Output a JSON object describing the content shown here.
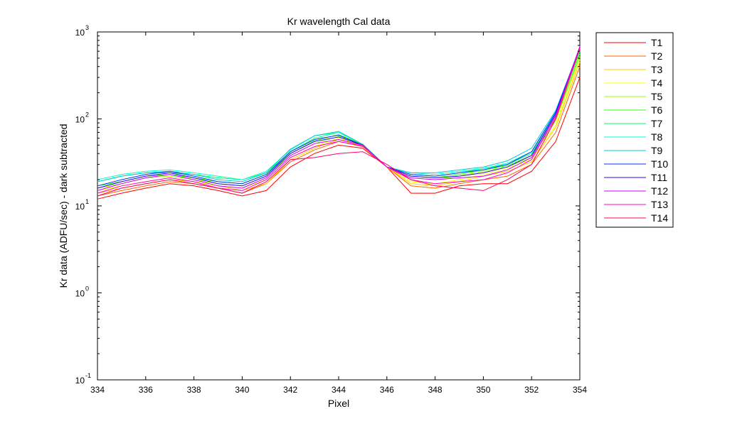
{
  "chart_data": {
    "type": "line",
    "title": "Kr wavelength Cal data",
    "xlabel": "Pixel",
    "ylabel": "Kr data (ADFU/sec) - dark subtracted",
    "xlim": [
      334,
      354
    ],
    "ylim": [
      0.1,
      1000
    ],
    "yscale": "log",
    "grid": false,
    "legend_position": "outside-top-right",
    "x_ticks": [
      "334",
      "336",
      "338",
      "340",
      "342",
      "344",
      "346",
      "348",
      "350",
      "352",
      "354"
    ],
    "y_ticks": [
      {
        "base": "10",
        "exp": "-1"
      },
      {
        "base": "10",
        "exp": "0"
      },
      {
        "base": "10",
        "exp": "1"
      },
      {
        "base": "10",
        "exp": "2"
      },
      {
        "base": "10",
        "exp": "3"
      }
    ],
    "x": [
      334,
      335,
      336,
      337,
      338,
      339,
      340,
      341,
      342,
      343,
      344,
      345,
      346,
      347,
      348,
      349,
      350,
      351,
      352,
      353,
      354
    ],
    "series": [
      {
        "name": "T1",
        "color": "#ff0000",
        "values": [
          12,
          14,
          16,
          18,
          17,
          15,
          13,
          15,
          28,
          40,
          50,
          46,
          28,
          14,
          14,
          17,
          18,
          18,
          25,
          55,
          300
        ]
      },
      {
        "name": "T2",
        "color": "#ff6600",
        "values": [
          13,
          15,
          17,
          19,
          18,
          16,
          14,
          18,
          32,
          44,
          55,
          48,
          28,
          17,
          16,
          18,
          20,
          22,
          30,
          70,
          400
        ]
      },
      {
        "name": "T3",
        "color": "#ffcc00",
        "values": [
          14,
          16,
          18,
          20,
          19,
          17,
          15,
          18,
          34,
          46,
          58,
          49,
          28,
          18,
          17,
          19,
          22,
          25,
          32,
          80,
          450
        ]
      },
      {
        "name": "T4",
        "color": "#ffff00",
        "values": [
          15,
          17,
          19,
          21,
          19,
          17,
          16,
          20,
          36,
          48,
          60,
          50,
          28,
          19,
          18,
          20,
          23,
          27,
          34,
          85,
          480
        ]
      },
      {
        "name": "T5",
        "color": "#99ff00",
        "values": [
          16,
          18,
          21,
          22,
          20,
          18,
          17,
          22,
          38,
          52,
          63,
          51,
          28,
          21,
          20,
          22,
          25,
          28,
          36,
          95,
          520
        ]
      },
      {
        "name": "T6",
        "color": "#33ff00",
        "values": [
          17,
          19,
          22,
          23,
          21,
          19,
          18,
          23,
          40,
          56,
          66,
          51,
          28,
          22,
          21,
          23,
          26,
          29,
          38,
          100,
          560
        ]
      },
      {
        "name": "T7",
        "color": "#00ff66",
        "values": [
          19,
          22,
          24,
          24,
          23,
          21,
          20,
          24,
          42,
          60,
          70,
          51,
          28,
          23,
          22,
          24,
          27,
          30,
          40,
          110,
          600
        ]
      },
      {
        "name": "T8",
        "color": "#00ffcc",
        "values": [
          20,
          23,
          25,
          26,
          24,
          22,
          20,
          25,
          44,
          64,
          70,
          51,
          28,
          24,
          23,
          25,
          27,
          31,
          42,
          115,
          620
        ]
      },
      {
        "name": "T9",
        "color": "#00cccc",
        "values": [
          19,
          22,
          24,
          25,
          23,
          20,
          19,
          24,
          45,
          64,
          72,
          51,
          28,
          24,
          24,
          26,
          28,
          33,
          46,
          125,
          650
        ]
      },
      {
        "name": "T10",
        "color": "#0033ff",
        "values": [
          17,
          20,
          23,
          25,
          22,
          19,
          18,
          23,
          42,
          58,
          65,
          50,
          28,
          23,
          22,
          24,
          26,
          30,
          42,
          120,
          660
        ]
      },
      {
        "name": "T11",
        "color": "#3300ff",
        "values": [
          16,
          19,
          22,
          24,
          21,
          18,
          17,
          22,
          40,
          55,
          62,
          50,
          28,
          22,
          21,
          22,
          24,
          28,
          38,
          115,
          670
        ]
      },
      {
        "name": "T12",
        "color": "#cc00ff",
        "values": [
          15,
          18,
          21,
          23,
          20,
          17,
          16,
          21,
          38,
          52,
          58,
          50,
          28,
          21,
          20,
          21,
          22,
          26,
          36,
          110,
          680
        ]
      },
      {
        "name": "T13",
        "color": "#ff00cc",
        "values": [
          14,
          17,
          19,
          21,
          19,
          16,
          15,
          20,
          36,
          48,
          55,
          49,
          28,
          20,
          18,
          19,
          20,
          24,
          34,
          105,
          650
        ]
      },
      {
        "name": "T14",
        "color": "#ff0066",
        "values": [
          13,
          16,
          18,
          20,
          18,
          16,
          14,
          19,
          34,
          36,
          40,
          42,
          30,
          20,
          17,
          16,
          15,
          20,
          30,
          100,
          640
        ]
      }
    ]
  }
}
